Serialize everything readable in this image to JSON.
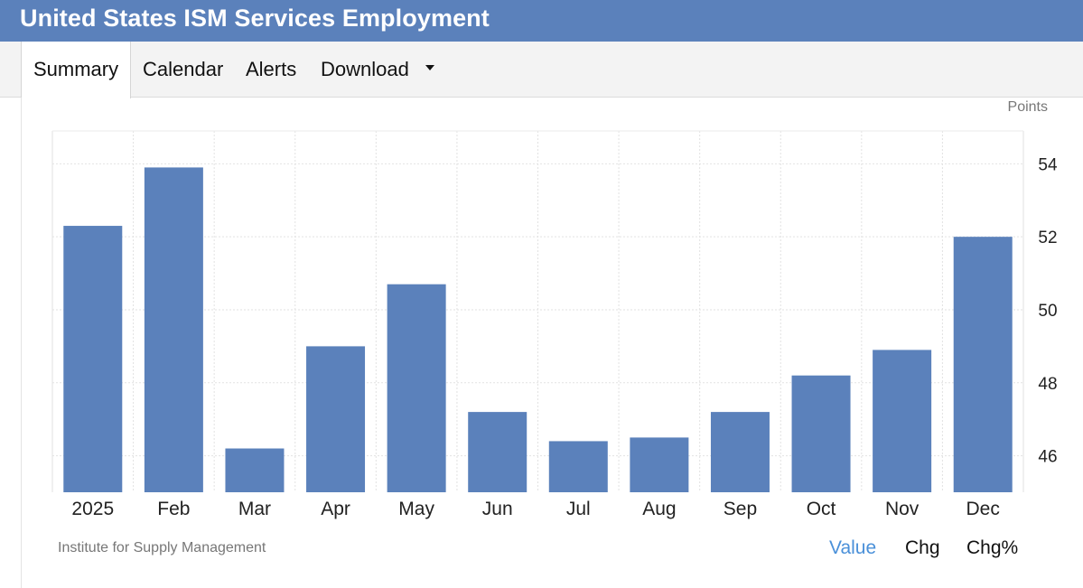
{
  "header": {
    "title": "United States ISM Services Employment"
  },
  "tabs": [
    {
      "label": "Summary",
      "active": true
    },
    {
      "label": "Calendar"
    },
    {
      "label": "Alerts"
    },
    {
      "label": "Download",
      "has_dropdown": true
    }
  ],
  "chart_data": {
    "type": "bar",
    "title": "",
    "xlabel": "",
    "ylabel": "",
    "unit_label": "Points",
    "categories": [
      "2025",
      "Feb",
      "Mar",
      "Apr",
      "May",
      "Jun",
      "Jul",
      "Aug",
      "Sep",
      "Oct",
      "Nov",
      "Dec"
    ],
    "values": [
      52.3,
      53.9,
      46.2,
      49.0,
      50.7,
      47.2,
      46.4,
      46.5,
      47.2,
      48.2,
      48.9,
      52.0
    ],
    "ylim": [
      45,
      54.9
    ],
    "yticks": [
      46,
      48,
      50,
      52,
      54
    ],
    "grid": true,
    "bar_color": "#5b81bb"
  },
  "footer": {
    "source": "Institute for Supply Management",
    "views": [
      {
        "label": "Value",
        "active": true
      },
      {
        "label": "Chg"
      },
      {
        "label": "Chg%"
      }
    ]
  },
  "colors": {
    "header_bg": "#5b81bb",
    "active_link": "#4a90d9"
  }
}
